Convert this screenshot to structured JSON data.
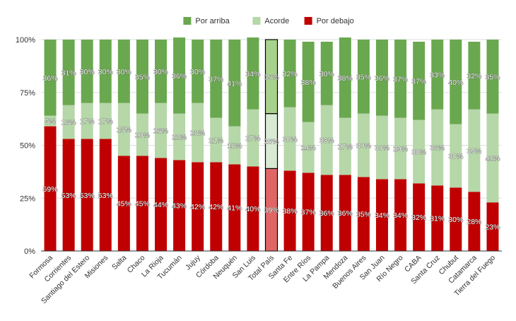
{
  "chart_data": {
    "type": "bar",
    "stacked": true,
    "orientation": "vertical",
    "legend_position": "top-center",
    "grid": true,
    "ylim": [
      0,
      100
    ],
    "y_ticks": [
      "0%",
      "25%",
      "50%",
      "75%",
      "100%"
    ],
    "title": "",
    "xlabel": "",
    "ylabel": "",
    "categories": [
      "Formosa",
      "Corrientes",
      "Santiago del Estero",
      "Misiones",
      "Salta",
      "Chaco",
      "La Rioja",
      "Tucumán",
      "Jujuy",
      "Córdoba",
      "Neuquén",
      "San Luis",
      "Total País",
      "Santa Fe",
      "Entre Ríos",
      "La Pampa",
      "Mendoza",
      "Buenos Aires",
      "San Juan",
      "Río Negro",
      "CABA",
      "Santa Cruz",
      "Chubut",
      "Catamarca",
      "Tierra del Fuego"
    ],
    "highlighted_category": "Total País",
    "series": [
      {
        "name": "Por debajo",
        "color": "#c00000",
        "highlight_color": "#e06666",
        "values": [
          59,
          53,
          53,
          53,
          45,
          45,
          44,
          43,
          42,
          42,
          41,
          40,
          39,
          38,
          37,
          36,
          36,
          35,
          34,
          34,
          32,
          31,
          30,
          28,
          23
        ],
        "labels": [
          "59%",
          "53%",
          "53%",
          "53%",
          "45%",
          "45%",
          "44%",
          "43%",
          "42%",
          "42%",
          "41%",
          "40%",
          "39%",
          "38%",
          "37%",
          "36%",
          "36%",
          "35%",
          "34%",
          "34%",
          "32%",
          "31%",
          "30%",
          "28%",
          "23%"
        ]
      },
      {
        "name": "Acorde",
        "color": "#b6d7a8",
        "highlight_color": "#d9ead3",
        "values": [
          5,
          16,
          17,
          17,
          25,
          20,
          26,
          22,
          28,
          21,
          18,
          27,
          26,
          30,
          24,
          33,
          27,
          30,
          30,
          29,
          30,
          36,
          30,
          39,
          42
        ],
        "labels": [
          "5%",
          "16%",
          "17%",
          "17%",
          "25%",
          "20%",
          "26%",
          "22%",
          "28%",
          "21%",
          "18%",
          "27%",
          "26%",
          "30%",
          "24%",
          "33%",
          "27%",
          "30%",
          "30%",
          "29%",
          "30%",
          "36%",
          "30%",
          "39%",
          "42%"
        ]
      },
      {
        "name": "Por arriba",
        "color": "#6aa84f",
        "highlight_color": "#a9d18e",
        "values": [
          36,
          31,
          30,
          30,
          30,
          35,
          30,
          36,
          30,
          37,
          41,
          34,
          35,
          32,
          38,
          30,
          38,
          35,
          36,
          37,
          37,
          33,
          40,
          32,
          35
        ],
        "labels": [
          "36%",
          "31%",
          "30%",
          "30%",
          "30%",
          "35%",
          "30%",
          "36%",
          "30%",
          "37%",
          "41%",
          "34%",
          "35%",
          "32%",
          "38%",
          "30%",
          "38%",
          "35%",
          "36%",
          "37%",
          "37%",
          "33%",
          "40%",
          "32%",
          "35%"
        ]
      }
    ],
    "legend_order": [
      "Por arriba",
      "Acorde",
      "Por debajo"
    ]
  },
  "colors": {
    "grid": "#dddddd",
    "axis": "#333333",
    "highlight_outline": "#000000"
  }
}
